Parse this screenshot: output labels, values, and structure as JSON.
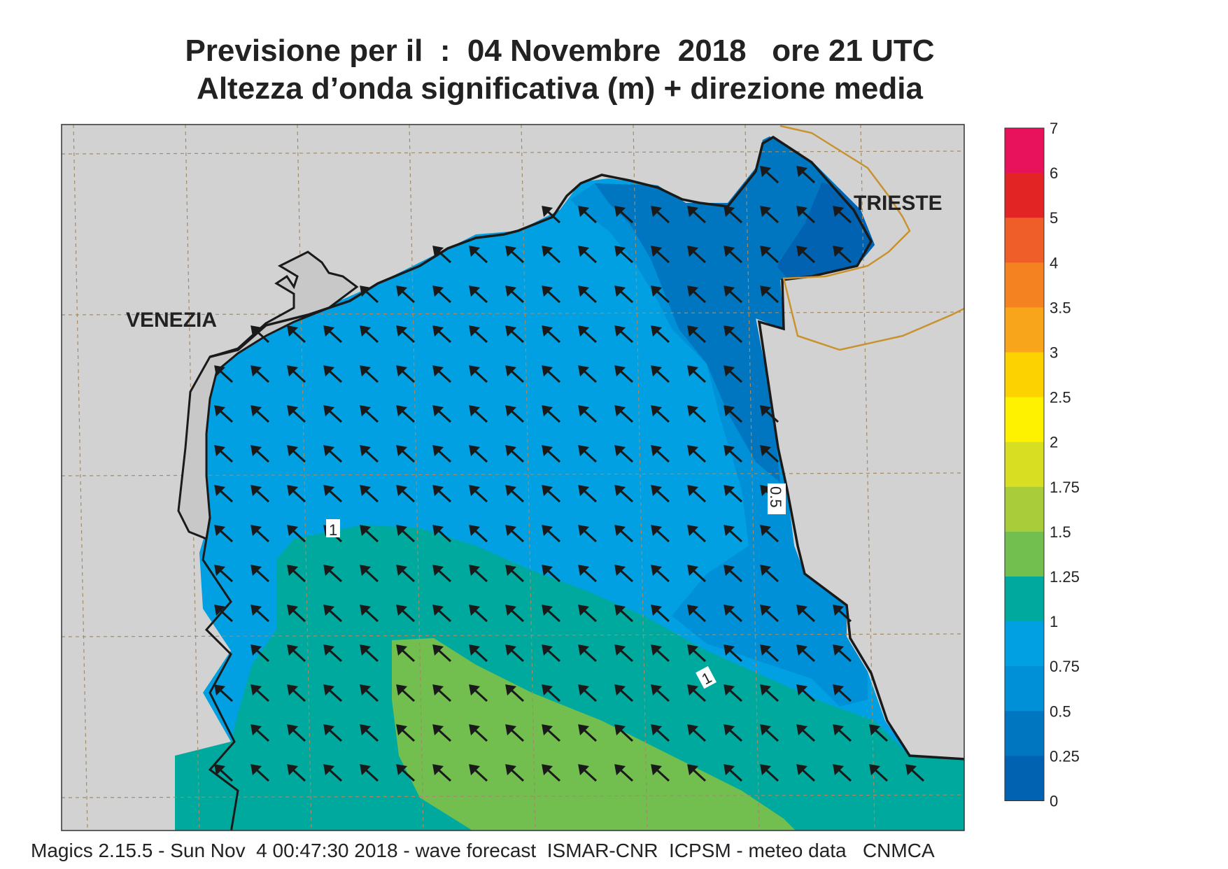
{
  "header": {
    "line1": "Previsione per il  :  04 Novembre  2018   ore 21 UTC",
    "line2": "Altezza d’onda significativa (m) + direzione media"
  },
  "map": {
    "city_labels": [
      "VENEZIA",
      "TRIESTE"
    ],
    "contour_labels": [
      "1",
      "1",
      "0.5"
    ],
    "land_color": "#d2d2d2",
    "border_color": "#c8932f",
    "coast_color": "#1a1a1a",
    "wave_direction": "north-west"
  },
  "legend": {
    "ticks": [
      "7",
      "6",
      "5",
      "4",
      "3.5",
      "3",
      "2.5",
      "2",
      "1.75",
      "1.5",
      "1.25",
      "1",
      "0.75",
      "0.5",
      "0.25",
      "0"
    ],
    "colors": [
      "#e8115c",
      "#e32424",
      "#ef5d28",
      "#f58220",
      "#f9a51b",
      "#fcd200",
      "#fff200",
      "#d8df22",
      "#a9cc3b",
      "#72be4f",
      "#00a99d",
      "#00a0e3",
      "#0090d8",
      "#0076c0",
      "#0062b0"
    ]
  },
  "footer": {
    "text": "Magics 2.15.5 - Sun Nov  4 00:47:30 2018 - wave forecast  ISMAR-CNR  ICPSM - meteo data   CNMCA"
  }
}
